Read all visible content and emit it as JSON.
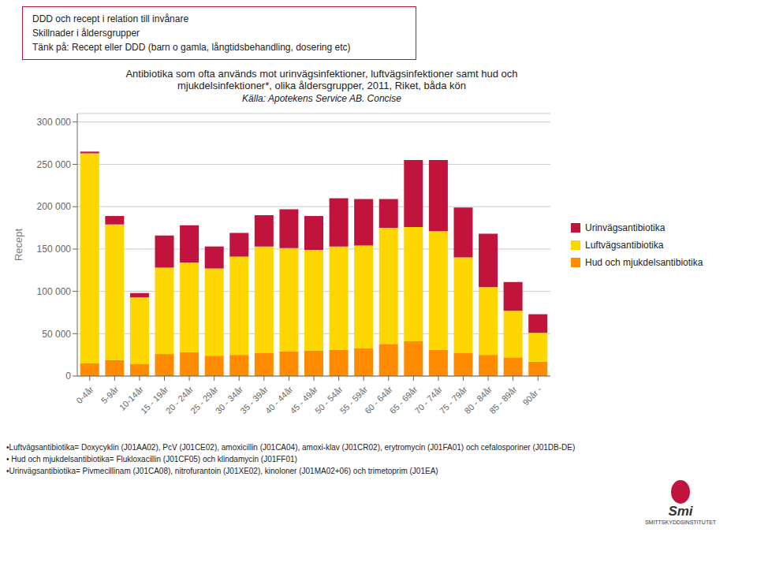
{
  "chart_data": {
    "type": "bar",
    "title": "Antibiotika som ofta används mot urinvägsinfektioner, luftvägsinfektioner samt hud och\nmjukdelsinfektioner*, olika åldersgrupper, 2011, Riket, båda kön",
    "subtitle": "Källa: Apotekens Service AB. Concise",
    "ylabel": "Recept",
    "categories": [
      "0-4år",
      "5-9år",
      "10-14år",
      "15 - 19år",
      "20 - 24år",
      "25 - 29år",
      "30 - 34år",
      "35 - 39år",
      "40 - 44år",
      "45 - 49år",
      "50 - 54år",
      "55 - 59år",
      "60 - 64år",
      "65 - 69år",
      "70 - 74år",
      "75 - 79år",
      "80 - 84år",
      "85 - 89år",
      "90år -"
    ],
    "series": [
      {
        "name": "Hud och mjukdelsantibiotika",
        "color": "#FF8C00",
        "values": [
          15000,
          19000,
          14000,
          26000,
          28000,
          24000,
          25000,
          27000,
          29000,
          30000,
          31000,
          33000,
          38000,
          41000,
          31000,
          27000,
          25000,
          22000,
          17000
        ]
      },
      {
        "name": "Luftvägsantibiotika",
        "color": "#FFD700",
        "values": [
          248000,
          160000,
          79000,
          102000,
          106000,
          103000,
          116000,
          126000,
          122000,
          119000,
          122000,
          121000,
          137000,
          135000,
          140000,
          113000,
          80000,
          55000,
          34000
        ]
      },
      {
        "name": "Urinvägsantibiotika",
        "color": "#C0143C",
        "values": [
          2000,
          10000,
          5000,
          38000,
          44000,
          26000,
          28000,
          37000,
          46000,
          40000,
          57000,
          55000,
          34000,
          79000,
          84000,
          59000,
          63000,
          34000,
          22000
        ]
      }
    ],
    "stacked": true,
    "grid": true,
    "legend": "right",
    "ylim": [
      0,
      310000
    ],
    "yticks": [
      0,
      {
        "value": 50000,
        "label": "50 000"
      },
      {
        "value": 100000,
        "label": "100 000"
      },
      {
        "value": 150000,
        "label": "150 000"
      },
      {
        "value": 200000,
        "label": "200 000"
      },
      {
        "value": 250000,
        "label": "250 000"
      },
      {
        "value": 300000,
        "label": "300 000"
      }
    ],
    "annotations": [
      "DDD och recept i relation till invånare\nSkillnader i åldersgrupper\nTänk på: Recept eller DDD (barn o gamla, långtidsbehandling, dosering etc)",
      "•Luftvägsantibiotika= Doxycyklin (J01AA02), PcV (J01CE02), amoxicillin (J01CA04), amoxi-klav (J01CR02), erytromycin (J01FA01) och cefalosporiner (J01DB-DE)",
      "• Hud och mjukdelsantibiotika= Flukloxacillin (J01CF05) och klindamycin (J01FF01)",
      "•Urinvägsantibiotika= Pivmecillinam (J01CA08), nitrofurantoin (J01XE02), kinoloner (J01MA02+06) och trimetoprim (J01EA)",
      "Smi",
      "SMITTSKYDDSINSTITUTET"
    ]
  }
}
